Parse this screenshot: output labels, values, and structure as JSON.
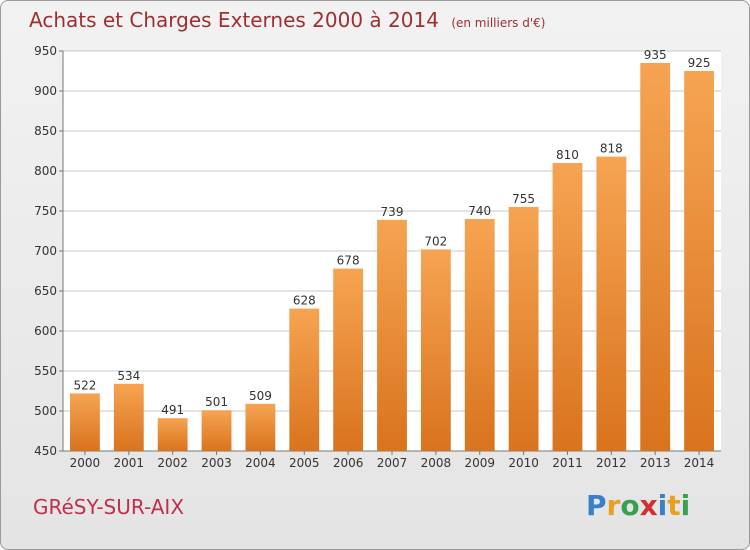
{
  "header": {
    "title": "Achats et Charges Externes 2000 à 2014",
    "unit": "(en milliers d'€)"
  },
  "footer": {
    "place": "GRéSY-SUR-AIX",
    "logo": [
      {
        "ch": "P",
        "color": "#3a7fc8"
      },
      {
        "ch": "r",
        "color": "#e8a020"
      },
      {
        "ch": "o",
        "color": "#3aa050"
      },
      {
        "ch": "x",
        "color": "#d03030"
      },
      {
        "ch": "i",
        "color": "#3a7fc8"
      },
      {
        "ch": "t",
        "color": "#e8a020"
      },
      {
        "ch": "i",
        "color": "#3aa050"
      }
    ]
  },
  "colors": {
    "bar_top": "#f6a452",
    "bar_bottom": "#d9731e",
    "grid": "#c8c8c8",
    "axis_text": "#333333"
  },
  "chart_data": {
    "type": "bar",
    "title": "Achats et Charges Externes 2000 à 2014",
    "subtitle": "(en milliers d'€)",
    "categories": [
      "2000",
      "2001",
      "2002",
      "2003",
      "2004",
      "2005",
      "2006",
      "2007",
      "2008",
      "2009",
      "2010",
      "2011",
      "2012",
      "2013",
      "2014"
    ],
    "values": [
      522,
      534,
      491,
      501,
      509,
      628,
      678,
      739,
      702,
      740,
      755,
      810,
      818,
      935,
      925
    ],
    "ylim": [
      450,
      950
    ],
    "yticks": [
      450,
      500,
      550,
      600,
      650,
      700,
      750,
      800,
      850,
      900,
      950
    ],
    "grid": true
  }
}
